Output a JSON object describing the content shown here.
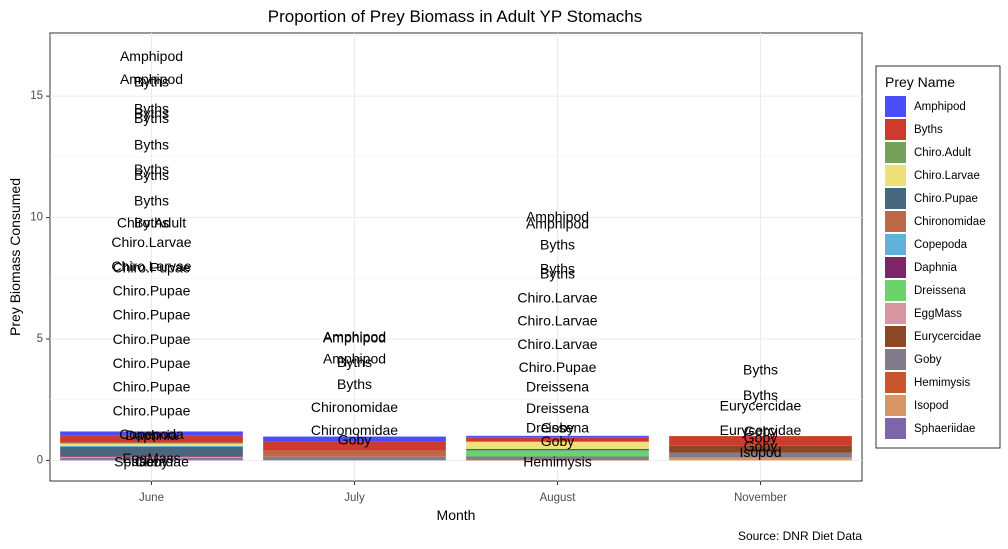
{
  "chart_data": {
    "type": "bar",
    "title": "Proportion of Prey Biomass in Adult YP Stomachs",
    "xlabel": "Month",
    "ylabel": "Prey Biomass Consumed",
    "caption": "Source: DNR Diet Data",
    "ylim": [
      -0.85,
      17.6
    ],
    "y_ticks": [
      0,
      5,
      10,
      15
    ],
    "categories": [
      "June",
      "July",
      "August",
      "November"
    ],
    "legend": {
      "title": "Prey Name",
      "position": "right",
      "entries": [
        {
          "name": "Amphipod",
          "color": "#4b4dfb"
        },
        {
          "name": "Byths",
          "color": "#cc3b2d"
        },
        {
          "name": "Chiro.Adult",
          "color": "#77a05a"
        },
        {
          "name": "Chiro.Larvae",
          "color": "#efe17a"
        },
        {
          "name": "Chiro.Pupae",
          "color": "#47677f"
        },
        {
          "name": "Chironomidae",
          "color": "#bd6846"
        },
        {
          "name": "Copepoda",
          "color": "#60b2dd"
        },
        {
          "name": "Daphnia",
          "color": "#7e2566"
        },
        {
          "name": "Dreissena",
          "color": "#6bd36b"
        },
        {
          "name": "EggMass",
          "color": "#d895a2"
        },
        {
          "name": "Eurycercidae",
          "color": "#8c4725"
        },
        {
          "name": "Goby",
          "color": "#827b8c"
        },
        {
          "name": "Hemimysis",
          "color": "#c8552b"
        },
        {
          "name": "Isopod",
          "color": "#da9565"
        },
        {
          "name": "Sphaeriidae",
          "color": "#7c65a9"
        }
      ]
    },
    "stacks": [
      {
        "month": "June",
        "segments": [
          {
            "prey": "Sphaeriidae",
            "value": 0.04
          },
          {
            "prey": "Goby",
            "value": 0.06
          },
          {
            "prey": "EggMass",
            "value": 0.05
          },
          {
            "prey": "Daphnia",
            "value": 0.03
          },
          {
            "prey": "Chiro.Pupae",
            "value": 0.38
          },
          {
            "prey": "Copepoda",
            "value": 0.04
          },
          {
            "prey": "Chiro.Larvae",
            "value": 0.09
          },
          {
            "prey": "Chiro.Adult",
            "value": 0.04
          },
          {
            "prey": "Byths",
            "value": 0.31
          },
          {
            "prey": "Amphipod",
            "value": 0.15
          }
        ]
      },
      {
        "month": "July",
        "segments": [
          {
            "prey": "Goby",
            "value": 0.15
          },
          {
            "prey": "Chironomidae",
            "value": 0.25
          },
          {
            "prey": "Byths",
            "value": 0.38
          },
          {
            "prey": "Amphipod",
            "value": 0.2
          }
        ]
      },
      {
        "month": "August",
        "segments": [
          {
            "prey": "Hemimysis",
            "value": 0.04
          },
          {
            "prey": "Goby",
            "value": 0.12
          },
          {
            "prey": "Dreissena",
            "value": 0.25
          },
          {
            "prey": "Chiro.Pupae",
            "value": 0.06
          },
          {
            "prey": "Chiro.Larvae",
            "value": 0.3
          },
          {
            "prey": "Byths",
            "value": 0.18
          },
          {
            "prey": "Amphipod",
            "value": 0.06
          }
        ]
      },
      {
        "month": "November",
        "segments": [
          {
            "prey": "Isopod",
            "value": 0.12
          },
          {
            "prey": "Goby",
            "value": 0.2
          },
          {
            "prey": "Eurycercidae",
            "value": 0.28
          },
          {
            "prey": "Byths",
            "value": 0.4
          }
        ]
      }
    ],
    "point_labels": [
      {
        "month": "June",
        "y": 16.65,
        "text": "Amphipod"
      },
      {
        "month": "June",
        "y": 15.7,
        "text": "Amphipod"
      },
      {
        "month": "June",
        "y": 15.6,
        "text": "Byths"
      },
      {
        "month": "June",
        "y": 14.5,
        "text": "Byths"
      },
      {
        "month": "June",
        "y": 14.3,
        "text": "Byths"
      },
      {
        "month": "June",
        "y": 14.1,
        "text": "Byths"
      },
      {
        "month": "June",
        "y": 13.0,
        "text": "Byths"
      },
      {
        "month": "June",
        "y": 12.0,
        "text": "Byths"
      },
      {
        "month": "June",
        "y": 11.75,
        "text": "Byths"
      },
      {
        "month": "June",
        "y": 10.7,
        "text": "Byths"
      },
      {
        "month": "June",
        "y": 9.8,
        "text": "Chiro.Adult"
      },
      {
        "month": "June",
        "y": 9.8,
        "text": "Byths"
      },
      {
        "month": "June",
        "y": 9.0,
        "text": "Chiro.Larvae"
      },
      {
        "month": "June",
        "y": 8.0,
        "text": "Chiro.Larvae"
      },
      {
        "month": "June",
        "y": 7.95,
        "text": "Chiro.Pupae"
      },
      {
        "month": "June",
        "y": 7.0,
        "text": "Chiro.Pupae"
      },
      {
        "month": "June",
        "y": 6.0,
        "text": "Chiro.Pupae"
      },
      {
        "month": "June",
        "y": 5.0,
        "text": "Chiro.Pupae"
      },
      {
        "month": "June",
        "y": 4.0,
        "text": "Chiro.Pupae"
      },
      {
        "month": "June",
        "y": 3.05,
        "text": "Chiro.Pupae"
      },
      {
        "month": "June",
        "y": 2.05,
        "text": "Chiro.Pupae"
      },
      {
        "month": "June",
        "y": 1.08,
        "text": "Copepoda"
      },
      {
        "month": "June",
        "y": 1.05,
        "text": "Daphnia"
      },
      {
        "month": "June",
        "y": 0.1,
        "text": "EggMass"
      },
      {
        "month": "June",
        "y": -0.05,
        "text": "Goby"
      },
      {
        "month": "June",
        "y": -0.05,
        "text": "Sphaeriidae"
      },
      {
        "month": "July",
        "y": 5.1,
        "text": "Amphipod"
      },
      {
        "month": "July",
        "y": 5.05,
        "text": "Amphipod"
      },
      {
        "month": "July",
        "y": 4.2,
        "text": "Amphipod"
      },
      {
        "month": "July",
        "y": 4.05,
        "text": "Byths"
      },
      {
        "month": "July",
        "y": 3.15,
        "text": "Byths"
      },
      {
        "month": "July",
        "y": 2.2,
        "text": "Chironomidae"
      },
      {
        "month": "July",
        "y": 1.25,
        "text": "Chironomidae"
      },
      {
        "month": "July",
        "y": 0.85,
        "text": "Goby"
      },
      {
        "month": "August",
        "y": 10.05,
        "text": "Amphipod"
      },
      {
        "month": "August",
        "y": 9.75,
        "text": "Amphipod"
      },
      {
        "month": "August",
        "y": 8.9,
        "text": "Byths"
      },
      {
        "month": "August",
        "y": 7.9,
        "text": "Byths"
      },
      {
        "month": "August",
        "y": 7.7,
        "text": "Byths"
      },
      {
        "month": "August",
        "y": 6.7,
        "text": "Chiro.Larvae"
      },
      {
        "month": "August",
        "y": 5.75,
        "text": "Chiro.Larvae"
      },
      {
        "month": "August",
        "y": 4.8,
        "text": "Chiro.Larvae"
      },
      {
        "month": "August",
        "y": 3.85,
        "text": "Chiro.Pupae"
      },
      {
        "month": "August",
        "y": 3.05,
        "text": "Dreissena"
      },
      {
        "month": "August",
        "y": 2.15,
        "text": "Dreissena"
      },
      {
        "month": "August",
        "y": 1.35,
        "text": "Dreissena"
      },
      {
        "month": "August",
        "y": 1.35,
        "text": "Goby"
      },
      {
        "month": "August",
        "y": 0.8,
        "text": "Goby"
      },
      {
        "month": "August",
        "y": -0.05,
        "text": "Hemimysis"
      },
      {
        "month": "November",
        "y": 3.75,
        "text": "Byths"
      },
      {
        "month": "November",
        "y": 2.7,
        "text": "Byths"
      },
      {
        "month": "November",
        "y": 2.25,
        "text": "Eurycercidae"
      },
      {
        "month": "November",
        "y": 1.25,
        "text": "Eurycercidae"
      },
      {
        "month": "November",
        "y": 1.2,
        "text": "Goby"
      },
      {
        "month": "November",
        "y": 0.95,
        "text": "Goby"
      },
      {
        "month": "November",
        "y": 0.6,
        "text": "Goby"
      },
      {
        "month": "November",
        "y": 0.35,
        "text": "Isopod"
      }
    ]
  }
}
